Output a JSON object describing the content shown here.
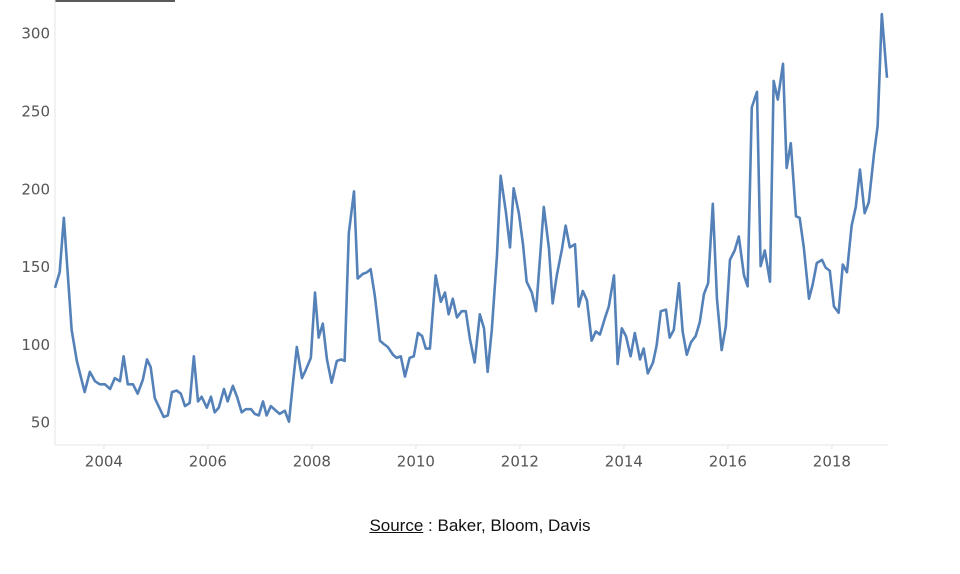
{
  "chart_data": {
    "type": "line",
    "x": [
      2003.06,
      2003.15,
      2003.23,
      2003.38,
      2003.48,
      2003.63,
      2003.73,
      2003.83,
      2003.92,
      2004.02,
      2004.12,
      2004.21,
      2004.31,
      2004.38,
      2004.46,
      2004.56,
      2004.65,
      2004.75,
      2004.83,
      2004.9,
      2004.98,
      2005.08,
      2005.15,
      2005.23,
      2005.31,
      2005.4,
      2005.48,
      2005.56,
      2005.65,
      2005.73,
      2005.81,
      2005.88,
      2005.98,
      2006.06,
      2006.13,
      2006.21,
      2006.31,
      2006.38,
      2006.48,
      2006.56,
      2006.65,
      2006.73,
      2006.83,
      2006.9,
      2006.98,
      2007.06,
      2007.13,
      2007.21,
      2007.31,
      2007.38,
      2007.48,
      2007.56,
      2007.63,
      2007.71,
      2007.81,
      2007.88,
      2007.98,
      2008.06,
      2008.13,
      2008.21,
      2008.29,
      2008.38,
      2008.48,
      2008.56,
      2008.63,
      2008.71,
      2008.81,
      2008.88,
      2008.98,
      2009.06,
      2009.13,
      2009.21,
      2009.31,
      2009.38,
      2009.46,
      2009.56,
      2009.63,
      2009.71,
      2009.79,
      2009.88,
      2009.96,
      2010.04,
      2010.12,
      2010.19,
      2010.27,
      2010.38,
      2010.48,
      2010.56,
      2010.63,
      2010.71,
      2010.79,
      2010.88,
      2010.96,
      2011.04,
      2011.13,
      2011.23,
      2011.31,
      2011.38,
      2011.46,
      2011.56,
      2011.63,
      2011.73,
      2011.81,
      2011.88,
      2011.98,
      2012.06,
      2012.13,
      2012.23,
      2012.31,
      2012.38,
      2012.46,
      2012.56,
      2012.63,
      2012.71,
      2012.81,
      2012.88,
      2012.96,
      2013.06,
      2013.13,
      2013.21,
      2013.29,
      2013.38,
      2013.46,
      2013.54,
      2013.63,
      2013.71,
      2013.81,
      2013.88,
      2013.96,
      2014.04,
      2014.13,
      2014.21,
      2014.31,
      2014.38,
      2014.46,
      2014.56,
      2014.63,
      2014.71,
      2014.81,
      2014.88,
      2014.96,
      2015.06,
      2015.13,
      2015.21,
      2015.29,
      2015.38,
      2015.46,
      2015.54,
      2015.62,
      2015.71,
      2015.79,
      2015.88,
      2015.96,
      2016.04,
      2016.13,
      2016.21,
      2016.31,
      2016.38,
      2016.46,
      2016.56,
      2016.63,
      2016.71,
      2016.81,
      2016.88,
      2016.96,
      2017.06,
      2017.13,
      2017.21,
      2017.31,
      2017.38,
      2017.46,
      2017.56,
      2017.63,
      2017.71,
      2017.81,
      2017.88,
      2017.96,
      2018.04,
      2018.13,
      2018.21,
      2018.29,
      2018.38,
      2018.46,
      2018.54,
      2018.63,
      2018.71,
      2018.81,
      2018.88,
      2018.96,
      2019.06
    ],
    "values": [
      137,
      147,
      182,
      110,
      90,
      70,
      83,
      77,
      75,
      75,
      72,
      79,
      77,
      93,
      75,
      75,
      69,
      78,
      91,
      86,
      66,
      59,
      54,
      55,
      70,
      71,
      69,
      61,
      63,
      93,
      64,
      67,
      60,
      67,
      57,
      60,
      72,
      64,
      74,
      67,
      57,
      59,
      59,
      56,
      55,
      64,
      55,
      61,
      58,
      56,
      58,
      51,
      74,
      99,
      79,
      84,
      92,
      134,
      105,
      114,
      91,
      76,
      90,
      91,
      90,
      172,
      199,
      143,
      146,
      147,
      149,
      132,
      103,
      101,
      99,
      94,
      92,
      93,
      80,
      92,
      93,
      108,
      106,
      98,
      98,
      145,
      128,
      134,
      120,
      130,
      118,
      122,
      122,
      104,
      89,
      120,
      111,
      83,
      110,
      158,
      209,
      186,
      163,
      201,
      185,
      165,
      141,
      134,
      122,
      153,
      189,
      162,
      127,
      145,
      162,
      177,
      163,
      165,
      125,
      135,
      129,
      103,
      109,
      107,
      117,
      125,
      145,
      88,
      111,
      106,
      93,
      108,
      91,
      98,
      82,
      89,
      100,
      122,
      123,
      105,
      110,
      140,
      109,
      94,
      102,
      106,
      115,
      133,
      140,
      191,
      130,
      97,
      112,
      155,
      161,
      170,
      145,
      138,
      253,
      263,
      151,
      161,
      141,
      270,
      258,
      281,
      214,
      230,
      183,
      182,
      163,
      130,
      139,
      153,
      155,
      150,
      148,
      125,
      121,
      152,
      147,
      177,
      189,
      213,
      185,
      192,
      223,
      241,
      313,
      272
    ],
    "color": "#5581b9",
    "xlim": [
      2003.06,
      2019.06
    ],
    "xticks": [
      2004,
      2006,
      2008,
      2010,
      2012,
      2014,
      2016,
      2018
    ],
    "ylim": [
      36,
      322
    ],
    "yticks": [
      50,
      100,
      150,
      200,
      250,
      300
    ],
    "grid": false,
    "source_label": "Source",
    "source_text": " : Baker, Bloom, Davis"
  }
}
